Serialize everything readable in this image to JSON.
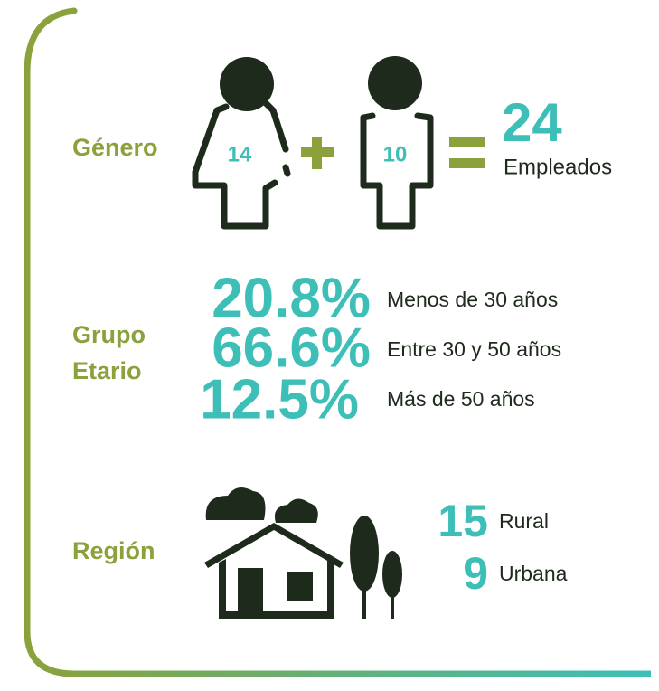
{
  "genero": {
    "label": "Género",
    "women": "14",
    "men": "10",
    "total": "24",
    "total_label": "Empleados"
  },
  "grupo_etario": {
    "label_lines": [
      "Grupo",
      "Etario"
    ],
    "rows": [
      {
        "value": "20.8%",
        "label": "Menos de 30 años"
      },
      {
        "value": "66.6%",
        "label": "Entre 30 y 50 años"
      },
      {
        "value": "12.5%",
        "label": "Más de 50 años"
      }
    ]
  },
  "region": {
    "label": "Región",
    "rows": [
      {
        "value": "15",
        "label": "Rural"
      },
      {
        "value": "9",
        "label": "Urbana"
      }
    ]
  }
}
